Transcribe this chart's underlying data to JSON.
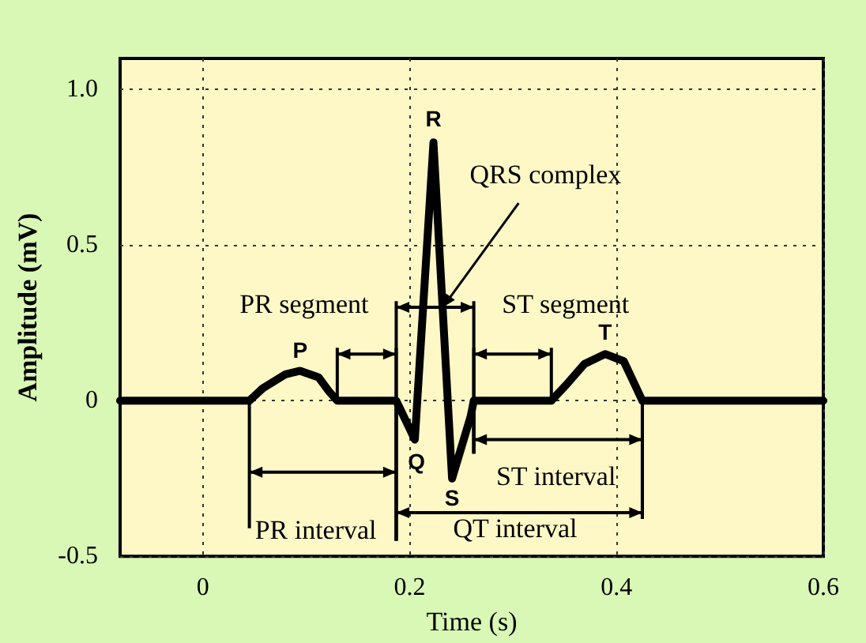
{
  "chart_data": {
    "type": "line",
    "xlabel": "Time (s)",
    "ylabel": "Amplitude (mV)",
    "x": [
      -0.08,
      0.045,
      0.058,
      0.08,
      0.094,
      0.112,
      0.122,
      0.13,
      0.187,
      0.205,
      0.223,
      0.241,
      0.259,
      0.262,
      0.337,
      0.353,
      0.369,
      0.389,
      0.407,
      0.417,
      0.425,
      0.6
    ],
    "series": [
      {
        "color": "#000000",
        "values": [
          0,
          0,
          0.04,
          0.085,
          0.096,
          0.075,
          0.03,
          0,
          0,
          -0.125,
          0.83,
          -0.25,
          -0.05,
          0,
          0,
          0.057,
          0.118,
          0.15,
          0.127,
          0.057,
          0,
          0
        ]
      }
    ],
    "xlim": [
      -0.08,
      0.6
    ],
    "ylim": [
      -0.5,
      1.1
    ],
    "xticks": [
      0,
      0.2,
      0.4,
      0.6
    ],
    "yticks": [
      -0.5,
      0,
      0.5,
      {
        "value": 1,
        "label": "1.0"
      }
    ],
    "grid": true,
    "marker": "none",
    "line_style": "solid",
    "annotations": [
      {
        "text": "P",
        "x": 0.094,
        "y": 0.096
      },
      {
        "text": "Q",
        "x": 0.205,
        "y": -0.125
      },
      {
        "text": "R",
        "x": 0.223,
        "y": 0.83
      },
      {
        "text": "S",
        "x": 0.241,
        "y": -0.25
      },
      {
        "text": "T",
        "x": 0.389,
        "y": 0.15
      },
      {
        "text": "PR segment",
        "x": 0.13,
        "y": 0
      },
      {
        "text": "QRS complex",
        "x": 0.232,
        "y": 0.3
      },
      {
        "text": "ST segment",
        "x": 0.337,
        "y": 0
      },
      {
        "text": "PR interval",
        "x": 0.045,
        "y": 0
      },
      {
        "text": "ST interval",
        "x": 0.262,
        "y": 0
      },
      "QT interval"
    ]
  }
}
